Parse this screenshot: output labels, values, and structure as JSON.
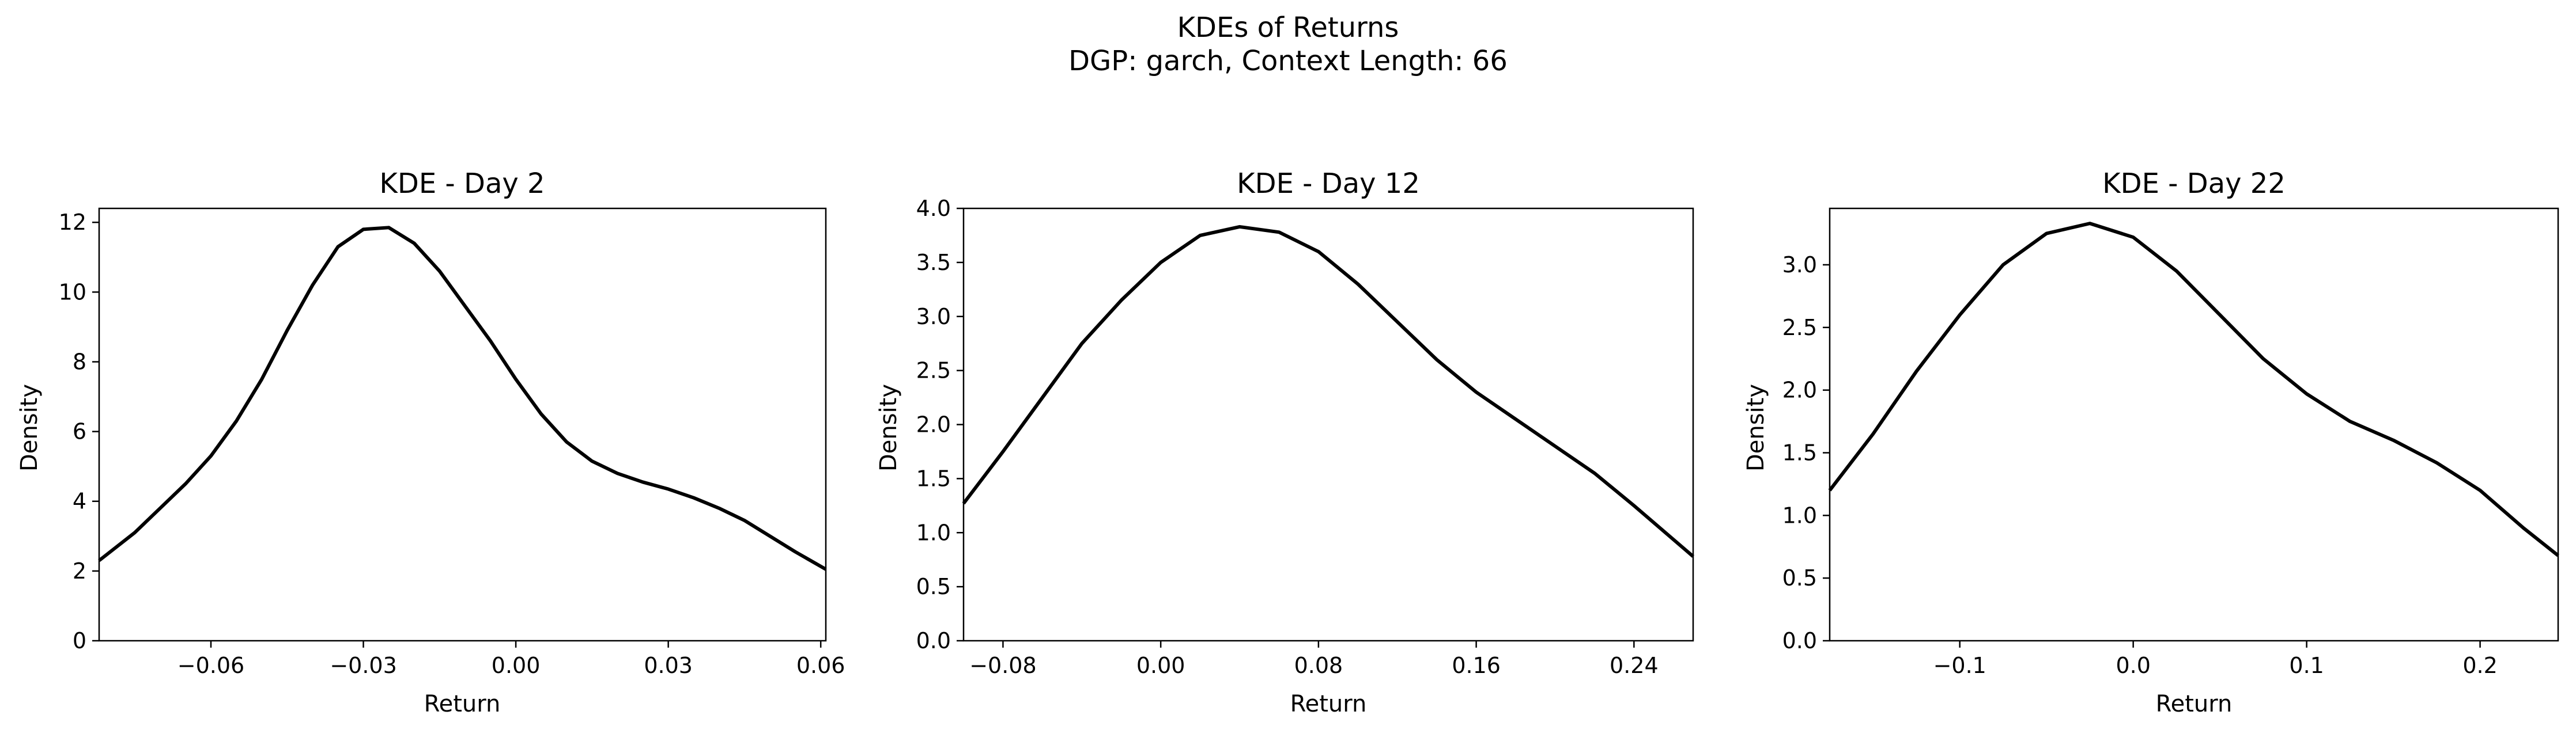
{
  "figure": {
    "suptitle_lines": [
      "KDEs of Returns",
      "DGP: garch, Context Length: 66"
    ]
  },
  "chart_data": [
    {
      "type": "line",
      "title": "KDE - Day 2",
      "xlabel": "Return",
      "ylabel": "Density",
      "xlim": [
        -0.082,
        0.061
      ],
      "ylim": [
        0,
        12.4
      ],
      "xticks": [
        -0.06,
        -0.03,
        0.0,
        0.03,
        0.06
      ],
      "xtick_labels": [
        "−0.06",
        "−0.03",
        "0.00",
        "0.03",
        "0.06"
      ],
      "yticks": [
        0,
        2,
        4,
        6,
        8,
        10,
        12
      ],
      "ytick_labels": [
        "0",
        "2",
        "4",
        "6",
        "8",
        "10",
        "12"
      ],
      "grid": false,
      "series": [
        {
          "color": "#000000",
          "x": [
            -0.082,
            -0.075,
            -0.07,
            -0.065,
            -0.06,
            -0.055,
            -0.05,
            -0.045,
            -0.04,
            -0.035,
            -0.03,
            -0.025,
            -0.02,
            -0.015,
            -0.01,
            -0.005,
            0.0,
            0.005,
            0.01,
            0.015,
            0.02,
            0.025,
            0.03,
            0.035,
            0.04,
            0.045,
            0.05,
            0.055,
            0.061
          ],
          "y": [
            2.3,
            3.1,
            3.8,
            4.5,
            5.3,
            6.3,
            7.5,
            8.9,
            10.2,
            11.3,
            11.8,
            11.85,
            11.4,
            10.6,
            9.6,
            8.6,
            7.5,
            6.5,
            5.7,
            5.15,
            4.8,
            4.55,
            4.35,
            4.1,
            3.8,
            3.45,
            3.0,
            2.55,
            2.05
          ]
        }
      ]
    },
    {
      "type": "line",
      "title": "KDE - Day 12",
      "xlabel": "Return",
      "ylabel": "Density",
      "xlim": [
        -0.1,
        0.27
      ],
      "ylim": [
        0,
        4.0
      ],
      "xticks": [
        -0.08,
        0.0,
        0.08,
        0.16,
        0.24
      ],
      "xtick_labels": [
        "−0.08",
        "0.00",
        "0.08",
        "0.16",
        "0.24"
      ],
      "yticks": [
        0.0,
        0.5,
        1.0,
        1.5,
        2.0,
        2.5,
        3.0,
        3.5,
        4.0
      ],
      "ytick_labels": [
        "0.0",
        "0.5",
        "1.0",
        "1.5",
        "2.0",
        "2.5",
        "3.0",
        "3.5",
        "4.0"
      ],
      "grid": false,
      "series": [
        {
          "color": "#000000",
          "x": [
            -0.1,
            -0.08,
            -0.06,
            -0.04,
            -0.02,
            0.0,
            0.02,
            0.04,
            0.06,
            0.08,
            0.1,
            0.12,
            0.14,
            0.16,
            0.18,
            0.2,
            0.22,
            0.24,
            0.27
          ],
          "y": [
            1.27,
            1.75,
            2.25,
            2.75,
            3.15,
            3.5,
            3.75,
            3.83,
            3.78,
            3.6,
            3.3,
            2.95,
            2.6,
            2.3,
            2.05,
            1.8,
            1.55,
            1.25,
            0.78
          ]
        }
      ]
    },
    {
      "type": "line",
      "title": "KDE - Day 22",
      "xlabel": "Return",
      "ylabel": "Density",
      "xlim": [
        -0.175,
        0.245
      ],
      "ylim": [
        0,
        3.45
      ],
      "xticks": [
        -0.1,
        0.0,
        0.1,
        0.2
      ],
      "xtick_labels": [
        "−0.1",
        "0.0",
        "0.1",
        "0.2"
      ],
      "yticks": [
        0.0,
        0.5,
        1.0,
        1.5,
        2.0,
        2.5,
        3.0
      ],
      "ytick_labels": [
        "0.0",
        "0.5",
        "1.0",
        "1.5",
        "2.0",
        "2.5",
        "3.0"
      ],
      "grid": false,
      "series": [
        {
          "color": "#000000",
          "x": [
            -0.175,
            -0.15,
            -0.125,
            -0.1,
            -0.075,
            -0.05,
            -0.025,
            0.0,
            0.025,
            0.05,
            0.075,
            0.1,
            0.125,
            0.15,
            0.175,
            0.2,
            0.225,
            0.245
          ],
          "y": [
            1.2,
            1.65,
            2.15,
            2.6,
            3.0,
            3.25,
            3.33,
            3.22,
            2.95,
            2.6,
            2.25,
            1.97,
            1.75,
            1.6,
            1.42,
            1.2,
            0.9,
            0.68
          ]
        }
      ]
    }
  ]
}
